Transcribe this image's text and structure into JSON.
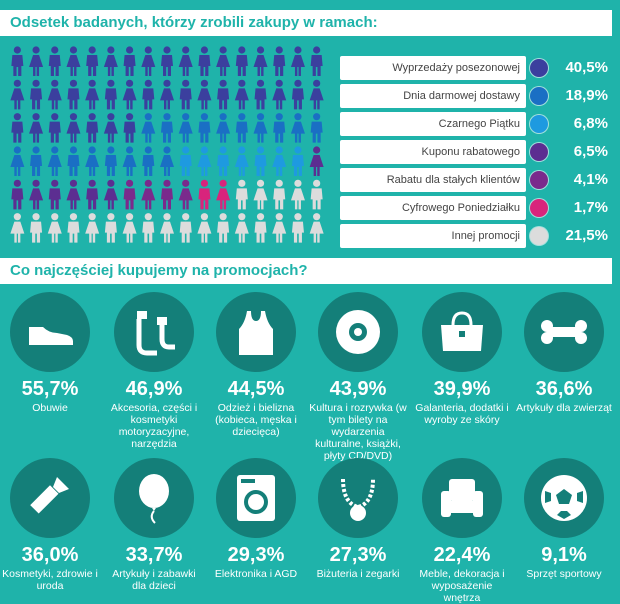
{
  "section1": {
    "title": "Odsetek badanych, którzy zrobili zakupy w ramach:"
  },
  "section2": {
    "title": "Co najczęściej kupujemy na promocjach?"
  },
  "chart_data": [
    {
      "type": "pictogram",
      "title": "Odsetek badanych, którzy zrobili zakupy w ramach:",
      "categories": [
        "Wyprzedaży posezonowej",
        "Dnia darmowej dostawy",
        "Czarnego Piątku",
        "Kuponu rabatowego",
        "Rabatu dla stałych klientów",
        "Cyfrowego Poniedziałku",
        "Innej promocji"
      ],
      "values": [
        40.5,
        18.9,
        6.8,
        6.5,
        4.1,
        1.7,
        21.5
      ],
      "value_labels": [
        "40,5%",
        "18,9%",
        "6,8%",
        "6,5%",
        "4,1%",
        "1,7%",
        "21,5%"
      ],
      "colors": [
        "#3b3f9e",
        "#1a6fc4",
        "#1e9ae0",
        "#5c2e91",
        "#7a2a8c",
        "#d8247c",
        "#dcdcdc"
      ],
      "icon_grid": {
        "rows": 6,
        "cols": 17
      }
    },
    {
      "type": "icon-stats",
      "title": "Co najczęściej kupujemy na promocjach?",
      "items": [
        {
          "icon": "shoe-icon",
          "value": 55.7,
          "pct": "55,7%",
          "label": "Obuwie"
        },
        {
          "icon": "pipe-icon",
          "value": 46.9,
          "pct": "46,9%",
          "label": "Akcesoria, części i kosmetyki motoryzacyjne, narzędzia"
        },
        {
          "icon": "tank-top-icon",
          "value": 44.5,
          "pct": "44,5%",
          "label": "Odzież i bielizna (kobieca, męska i dziecięca)"
        },
        {
          "icon": "disc-icon",
          "value": 43.9,
          "pct": "43,9%",
          "label": "Kultura i rozrywka (w tym bilety na wydarzenia kulturalne, książki, płyty CD/DVD)"
        },
        {
          "icon": "handbag-icon",
          "value": 39.9,
          "pct": "39,9%",
          "label": "Galanteria, dodatki i wyroby ze skóry"
        },
        {
          "icon": "bone-icon",
          "value": 36.6,
          "pct": "36,6%",
          "label": "Artykuły dla zwierząt"
        },
        {
          "icon": "lipstick-icon",
          "value": 36.0,
          "pct": "36,0%",
          "label": "Kosmetyki, zdrowie i uroda"
        },
        {
          "icon": "balloon-icon",
          "value": 33.7,
          "pct": "33,7%",
          "label": "Artykuły i zabawki dla dzieci"
        },
        {
          "icon": "washing-machine-icon",
          "value": 29.3,
          "pct": "29,3%",
          "label": "Elektronika i AGD"
        },
        {
          "icon": "necklace-icon",
          "value": 27.3,
          "pct": "27,3%",
          "label": "Biżuteria i zegarki"
        },
        {
          "icon": "armchair-icon",
          "value": 22.4,
          "pct": "22,4%",
          "label": "Meble, dekoracja i wyposażenie wnętrza"
        },
        {
          "icon": "football-icon",
          "value": 9.1,
          "pct": "9,1%",
          "label": "Sprzęt sportowy"
        }
      ]
    }
  ]
}
